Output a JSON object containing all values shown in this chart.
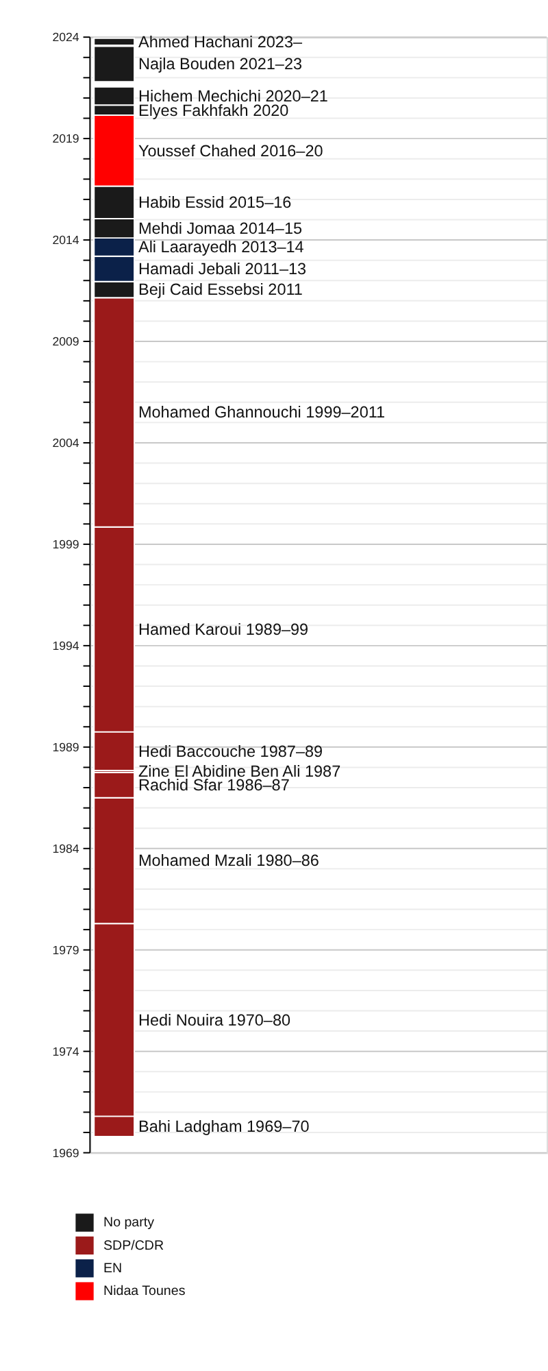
{
  "chart_data": {
    "type": "bar",
    "categories": [
      null
    ],
    "ylim": [
      1969,
      2024
    ],
    "yticks": [
      1969,
      {
        "value": 1970,
        "label": null
      },
      {
        "value": 1971,
        "label": null
      },
      {
        "value": 1972,
        "label": null
      },
      {
        "value": 1973,
        "label": null
      },
      1974,
      {
        "value": 1975,
        "label": null
      },
      {
        "value": 1976,
        "label": null
      },
      {
        "value": 1977,
        "label": null
      },
      {
        "value": 1978,
        "label": null
      },
      1979,
      {
        "value": 1980,
        "label": null
      },
      {
        "value": 1981,
        "label": null
      },
      {
        "value": 1982,
        "label": null
      },
      {
        "value": 1983,
        "label": null
      },
      1984,
      {
        "value": 1985,
        "label": null
      },
      {
        "value": 1986,
        "label": null
      },
      {
        "value": 1987,
        "label": null
      },
      {
        "value": 1988,
        "label": null
      },
      1989,
      {
        "value": 1990,
        "label": null
      },
      {
        "value": 1991,
        "label": null
      },
      {
        "value": 1992,
        "label": null
      },
      {
        "value": 1993,
        "label": null
      },
      1994,
      {
        "value": 1995,
        "label": null
      },
      {
        "value": 1996,
        "label": null
      },
      {
        "value": 1997,
        "label": null
      },
      {
        "value": 1998,
        "label": null
      },
      1999,
      {
        "value": 2000,
        "label": null
      },
      {
        "value": 2001,
        "label": null
      },
      {
        "value": 2002,
        "label": null
      },
      {
        "value": 2003,
        "label": null
      },
      2004,
      {
        "value": 2005,
        "label": null
      },
      {
        "value": 2006,
        "label": null
      },
      {
        "value": 2007,
        "label": null
      },
      {
        "value": 2008,
        "label": null
      },
      2009,
      {
        "value": 2010,
        "label": null
      },
      {
        "value": 2011,
        "label": null
      },
      {
        "value": 2012,
        "label": null
      },
      {
        "value": 2013,
        "label": null
      },
      2014,
      {
        "value": 2015,
        "label": null
      },
      {
        "value": 2016,
        "label": null
      },
      {
        "value": 2017,
        "label": null
      },
      {
        "value": 2018,
        "label": null
      },
      2019,
      {
        "value": 2020,
        "label": null
      },
      {
        "value": 2021,
        "label": null
      },
      {
        "value": 2022,
        "label": null
      },
      {
        "value": 2023,
        "label": null
      },
      2024
    ],
    "grid": true,
    "legend": "bottom left",
    "series": [
      {
        "name": "No party",
        "color": "#1a1a1a",
        "base": [
          2011.15
        ],
        "values": [
          0.8
        ]
      },
      {
        "name": "SDP/CDR",
        "color": "#9b1a1a",
        "base": [
          1969.8
        ],
        "values": [
          1.0
        ]
      },
      {
        "name": "EN",
        "color": "#0b2149",
        "base": [
          2011.95
        ],
        "values": [
          1.25
        ]
      },
      {
        "name": "Nidaa Tounes",
        "color": "#ff0000",
        "base": [
          2016.65
        ],
        "values": [
          3.5
        ]
      },
      {
        "color": "#9b1a1a",
        "base": [
          1970.8
        ],
        "values": [
          9.5
        ]
      },
      {
        "color": "#9b1a1a",
        "base": [
          1980.3
        ],
        "values": [
          6.2
        ]
      },
      {
        "color": "#9b1a1a",
        "base": [
          1986.5
        ],
        "values": [
          1.25
        ]
      },
      {
        "color": "#9b1a1a",
        "base": [
          1987.75
        ],
        "values": [
          0.1
        ]
      },
      {
        "color": "#9b1a1a",
        "base": [
          1987.85
        ],
        "values": [
          1.9
        ]
      },
      {
        "color": "#9b1a1a",
        "base": [
          1989.75
        ],
        "values": [
          10.1
        ]
      },
      {
        "color": "#9b1a1a",
        "base": [
          1999.85
        ],
        "values": [
          11.3
        ]
      },
      {
        "color": "#0b2149",
        "base": [
          2013.2
        ],
        "values": [
          0.9
        ]
      },
      {
        "color": "#1a1a1a",
        "base": [
          2014.1
        ],
        "values": [
          0.95
        ]
      },
      {
        "color": "#1a1a1a",
        "base": [
          2015.05
        ],
        "values": [
          1.6
        ]
      },
      {
        "color": "#1a1a1a",
        "base": [
          2020.15
        ],
        "values": [
          0.5
        ]
      },
      {
        "color": "#1a1a1a",
        "base": [
          2020.65
        ],
        "values": [
          0.9
        ]
      },
      {
        "color": "#1a1a1a",
        "base": [
          2021.8
        ],
        "values": [
          1.75
        ]
      },
      {
        "color": "#1a1a1a",
        "base": [
          2023.6
        ],
        "values": [
          0.35
        ]
      }
    ],
    "annotations": [
      "Beji Caid Essebsi 2011",
      "Bahi Ladgham 1969–70",
      "Hamadi Jebali 2011–13",
      "Youssef Chahed 2016–20",
      "Hedi Nouira 1970–80",
      "Mohamed Mzali 1980–86",
      "Rachid Sfar 1986–87",
      "Zine El Abidine Ben Ali 1987",
      "Hedi Baccouche 1987–89",
      "Hamed Karoui 1989–99",
      "Mohamed Ghannouchi 1999–2011",
      "Ali Laarayedh 2013–14",
      "Mehdi Jomaa 2014–15",
      "Habib Essid 2015–16",
      "Elyes Fakhfakh 2020",
      "Hichem Mechichi 2020–21",
      "Najla Bouden 2021–23",
      "Ahmed Hachani 2023–"
    ]
  }
}
